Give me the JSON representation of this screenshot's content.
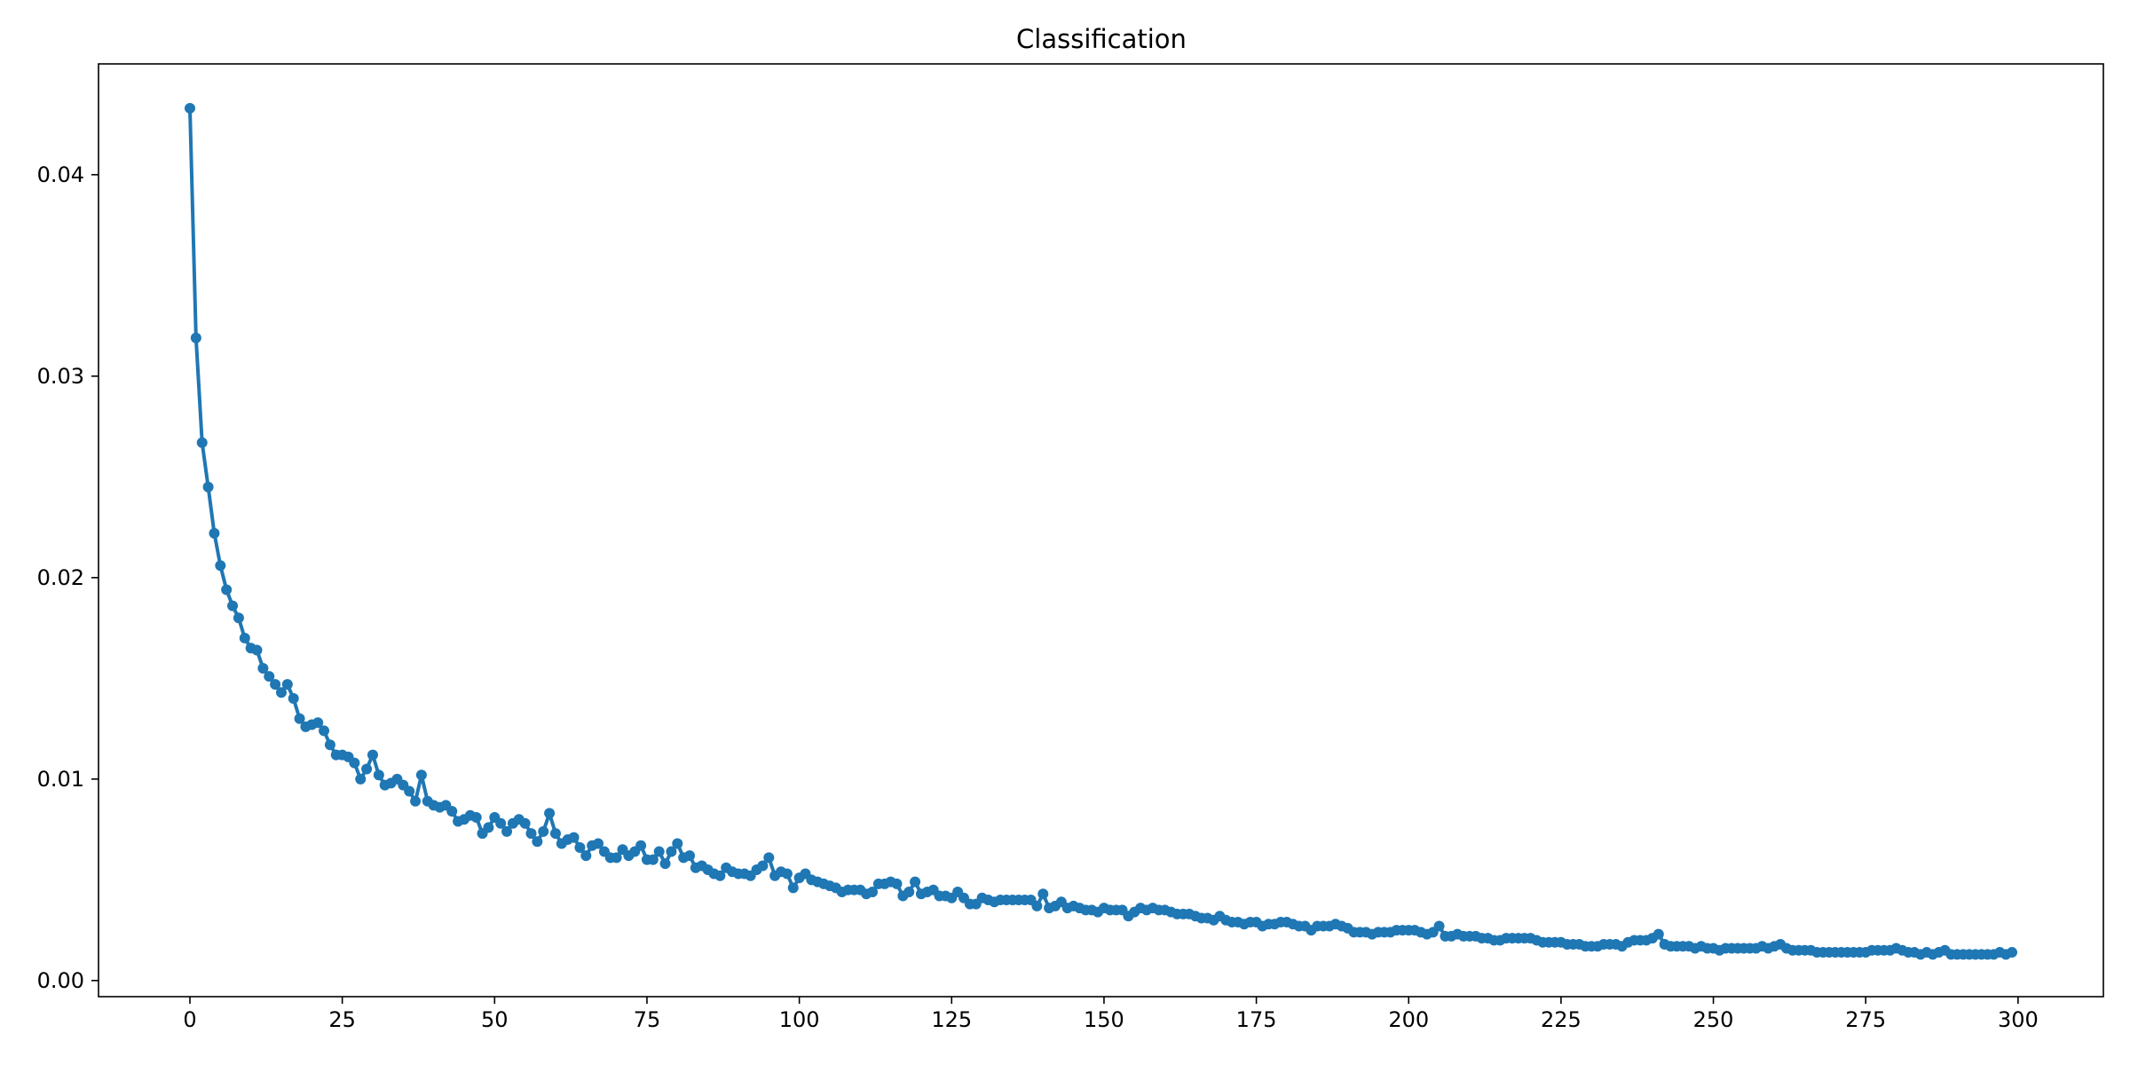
{
  "chart_data": {
    "type": "line",
    "title": "Classification",
    "xlabel": "",
    "ylabel": "",
    "xlim": [
      -15,
      314
    ],
    "ylim": [
      -0.0008,
      0.0455
    ],
    "x_ticks": [
      0,
      25,
      50,
      75,
      100,
      125,
      150,
      175,
      200,
      225,
      250,
      275,
      300
    ],
    "x_tick_labels": [
      "0",
      "25",
      "50",
      "75",
      "100",
      "125",
      "150",
      "175",
      "200",
      "225",
      "250",
      "275",
      "300"
    ],
    "y_ticks": [
      0.0,
      0.01,
      0.02,
      0.03,
      0.04
    ],
    "y_tick_labels": [
      "0.00",
      "0.01",
      "0.02",
      "0.03",
      "0.04"
    ],
    "grid": false,
    "legend": "none",
    "colors": {
      "series": "#1f77b4"
    },
    "series": [
      {
        "marker": "circle",
        "x_start": 0,
        "x_step": 1,
        "values": [
          0.0433,
          0.0319,
          0.0267,
          0.0245,
          0.0222,
          0.0206,
          0.0194,
          0.0186,
          0.018,
          0.017,
          0.0165,
          0.0164,
          0.0155,
          0.0151,
          0.0147,
          0.0143,
          0.0147,
          0.014,
          0.013,
          0.0126,
          0.0127,
          0.0128,
          0.0124,
          0.0117,
          0.0112,
          0.0112,
          0.0111,
          0.0108,
          0.01,
          0.0105,
          0.0112,
          0.0102,
          0.0097,
          0.0098,
          0.01,
          0.0097,
          0.0094,
          0.0089,
          0.0102,
          0.0089,
          0.0087,
          0.0086,
          0.0087,
          0.0084,
          0.0079,
          0.008,
          0.0082,
          0.0081,
          0.0073,
          0.0076,
          0.0081,
          0.0078,
          0.0074,
          0.0078,
          0.008,
          0.0078,
          0.0073,
          0.0069,
          0.0074,
          0.0083,
          0.0073,
          0.0068,
          0.007,
          0.0071,
          0.0066,
          0.0062,
          0.0067,
          0.0068,
          0.0064,
          0.0061,
          0.0061,
          0.0065,
          0.0062,
          0.0064,
          0.0067,
          0.006,
          0.006,
          0.0064,
          0.0058,
          0.0064,
          0.0068,
          0.0061,
          0.0062,
          0.0056,
          0.0057,
          0.0055,
          0.0053,
          0.0052,
          0.0056,
          0.0054,
          0.0053,
          0.0053,
          0.0052,
          0.0055,
          0.0057,
          0.0061,
          0.0052,
          0.0054,
          0.0053,
          0.0046,
          0.0051,
          0.0053,
          0.005,
          0.0049,
          0.0048,
          0.0047,
          0.0046,
          0.0044,
          0.0045,
          0.0045,
          0.0045,
          0.0043,
          0.0044,
          0.0048,
          0.0048,
          0.0049,
          0.0048,
          0.0042,
          0.0044,
          0.0049,
          0.0043,
          0.0044,
          0.0045,
          0.0042,
          0.0042,
          0.0041,
          0.0044,
          0.0041,
          0.0038,
          0.0038,
          0.0041,
          0.004,
          0.0039,
          0.004,
          0.004,
          0.004,
          0.004,
          0.004,
          0.004,
          0.0037,
          0.0043,
          0.0036,
          0.0037,
          0.0039,
          0.0036,
          0.0037,
          0.0036,
          0.0035,
          0.0035,
          0.0034,
          0.0036,
          0.0035,
          0.0035,
          0.0035,
          0.0032,
          0.0034,
          0.0036,
          0.0035,
          0.0036,
          0.0035,
          0.0035,
          0.0034,
          0.0033,
          0.0033,
          0.0033,
          0.0032,
          0.0031,
          0.0031,
          0.003,
          0.0032,
          0.003,
          0.0029,
          0.0029,
          0.0028,
          0.0029,
          0.0029,
          0.0027,
          0.0028,
          0.0028,
          0.0029,
          0.0029,
          0.0028,
          0.0027,
          0.0027,
          0.0025,
          0.0027,
          0.0027,
          0.0027,
          0.0028,
          0.0027,
          0.0026,
          0.0024,
          0.0024,
          0.0024,
          0.0023,
          0.0024,
          0.0024,
          0.0024,
          0.0025,
          0.0025,
          0.0025,
          0.0025,
          0.0024,
          0.0023,
          0.0024,
          0.0027,
          0.0022,
          0.0022,
          0.0023,
          0.0022,
          0.0022,
          0.0022,
          0.0021,
          0.0021,
          0.002,
          0.002,
          0.0021,
          0.0021,
          0.0021,
          0.0021,
          0.0021,
          0.002,
          0.0019,
          0.0019,
          0.0019,
          0.0019,
          0.0018,
          0.0018,
          0.0018,
          0.0017,
          0.0017,
          0.0017,
          0.0018,
          0.0018,
          0.0018,
          0.0017,
          0.0019,
          0.002,
          0.002,
          0.002,
          0.0021,
          0.0023,
          0.0018,
          0.0017,
          0.0017,
          0.0017,
          0.0017,
          0.0016,
          0.0017,
          0.0016,
          0.0016,
          0.0015,
          0.0016,
          0.0016,
          0.0016,
          0.0016,
          0.0016,
          0.0016,
          0.0017,
          0.0016,
          0.0017,
          0.0018,
          0.0016,
          0.0015,
          0.0015,
          0.0015,
          0.0015,
          0.0014,
          0.0014,
          0.0014,
          0.0014,
          0.0014,
          0.0014,
          0.0014,
          0.0014,
          0.0014,
          0.0015,
          0.0015,
          0.0015,
          0.0015,
          0.0016,
          0.0015,
          0.0014,
          0.0014,
          0.0013,
          0.0014,
          0.0013,
          0.0014,
          0.0015,
          0.0013,
          0.0013,
          0.0013,
          0.0013,
          0.0013,
          0.0013,
          0.0013,
          0.0013,
          0.0014,
          0.0013,
          0.0014
        ]
      }
    ]
  }
}
